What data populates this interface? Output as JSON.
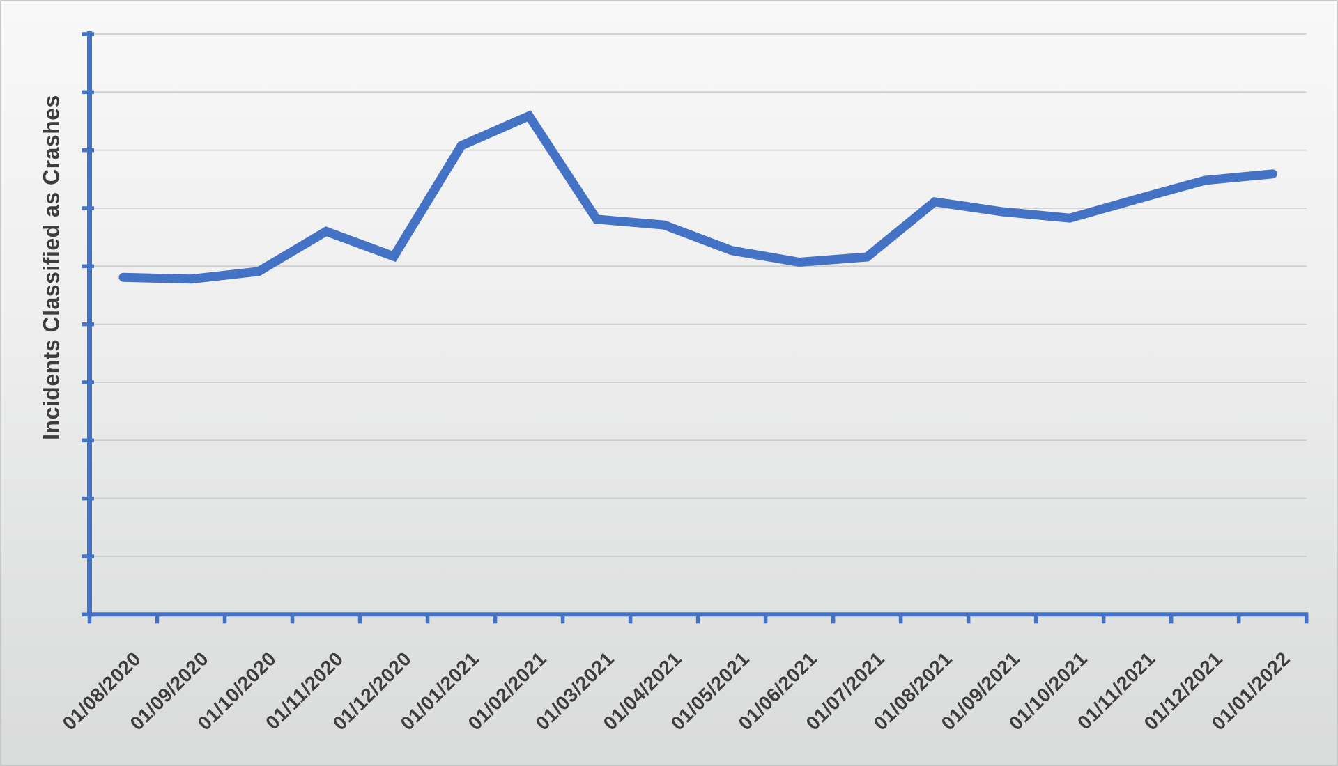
{
  "frame": {
    "border_color": "#c8c9c9",
    "background_top": "#f8f8f8",
    "background_bottom": "#dadbdb"
  },
  "chart_data": {
    "type": "line",
    "title": "",
    "xlabel": "",
    "ylabel": "Incidents Classified as Crashes",
    "categories": [
      "01/08/2020",
      "01/09/2020",
      "01/10/2020",
      "01/11/2020",
      "01/12/2020",
      "01/01/2021",
      "01/02/2021",
      "01/03/2021",
      "01/04/2021",
      "01/05/2021",
      "01/06/2021",
      "01/07/2021",
      "01/08/2021",
      "01/09/2021",
      "01/10/2021",
      "01/11/2021",
      "01/12/2021",
      "01/01/2022"
    ],
    "values": [
      5.81,
      5.78,
      5.91,
      6.6,
      6.17,
      8.08,
      8.59,
      6.81,
      6.71,
      6.27,
      6.07,
      6.16,
      7.11,
      6.94,
      6.83,
      7.16,
      7.48,
      7.59
    ],
    "ylim": [
      0,
      10
    ],
    "y_axis_numeric_labels_visible": false,
    "y_gridline_interval": 1,
    "x_tick_count": 19,
    "y_tick_count": 11,
    "grid": "horizontal",
    "legend": "none",
    "line_color": "#4472C4",
    "axis_color": "#4472C4",
    "gridline_color": "#c7c8c8",
    "label_color": "#3d3d3d"
  }
}
